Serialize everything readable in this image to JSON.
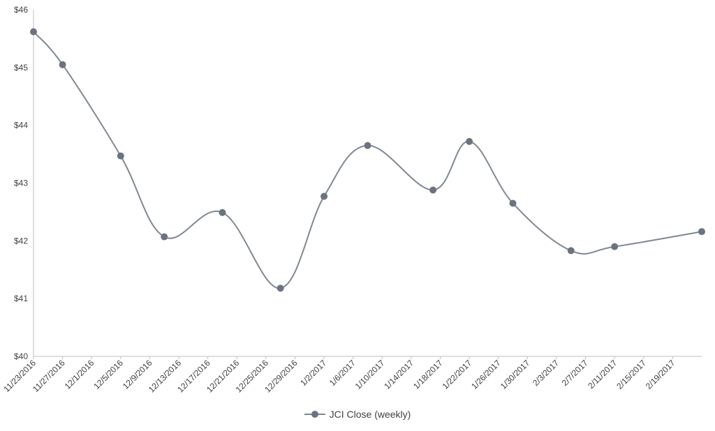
{
  "chart_data": {
    "type": "line",
    "x_tick_labels": [
      "11/23/2016",
      "11/27/2016",
      "12/1/2016",
      "12/5/2016",
      "12/9/2016",
      "12/13/2016",
      "12/17/2016",
      "12/21/2016",
      "12/25/2016",
      "12/29/2016",
      "1/2/2017",
      "1/6/2017",
      "1/10/2017",
      "1/14/2017",
      "1/18/2017",
      "1/22/2017",
      "1/26/2017",
      "1/30/2017",
      "2/3/2017",
      "2/7/2017",
      "2/11/2017",
      "2/15/2017",
      "2/19/2017"
    ],
    "y_tick_labels": [
      "$40",
      "$41",
      "$42",
      "$43",
      "$44",
      "$45",
      "$46"
    ],
    "ylim": [
      40,
      46
    ],
    "xlim": [
      "2016-11-23",
      "2017-02-23"
    ],
    "series": [
      {
        "name": "JCI Close (weekly)",
        "color": "#6b7380",
        "points": [
          {
            "x": "2016-11-23",
            "y": 45.62
          },
          {
            "x": "2016-11-27",
            "y": 45.05
          },
          {
            "x": "2016-12-05",
            "y": 43.47
          },
          {
            "x": "2016-12-11",
            "y": 42.07
          },
          {
            "x": "2016-12-19",
            "y": 42.49
          },
          {
            "x": "2016-12-27",
            "y": 41.18
          },
          {
            "x": "2017-01-02",
            "y": 42.77
          },
          {
            "x": "2017-01-08",
            "y": 43.65
          },
          {
            "x": "2017-01-17",
            "y": 42.88
          },
          {
            "x": "2017-01-22",
            "y": 43.72
          },
          {
            "x": "2017-01-28",
            "y": 42.65
          },
          {
            "x": "2017-02-05",
            "y": 41.83
          },
          {
            "x": "2017-02-11",
            "y": 41.9
          },
          {
            "x": "2017-02-23",
            "y": 42.16
          }
        ]
      }
    ],
    "grid": false,
    "legend_position": "bottom"
  }
}
